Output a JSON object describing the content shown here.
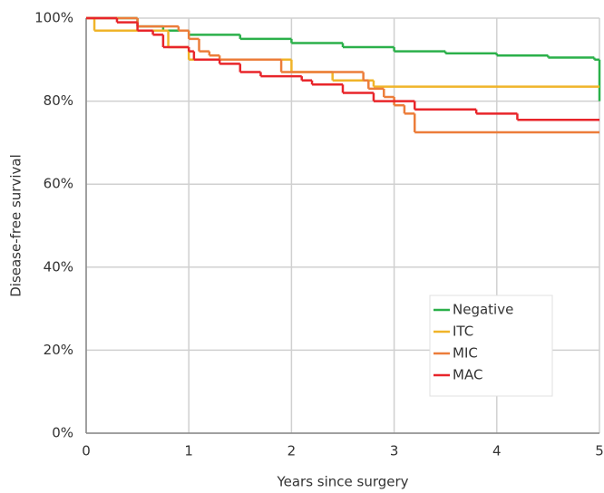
{
  "chart_data": {
    "type": "step",
    "x_label": "Years since surgery",
    "y_label": "Disease-free survival",
    "xlim": [
      0,
      5
    ],
    "xticks": [
      0,
      1,
      2,
      3,
      4,
      5
    ],
    "ylim": [
      0,
      100
    ],
    "yticks": [
      {
        "value": 0,
        "label": "0%"
      },
      {
        "value": 20,
        "label": "20%"
      },
      {
        "value": 40,
        "label": "40%"
      },
      {
        "value": 60,
        "label": "60%"
      },
      {
        "value": 80,
        "label": "80%"
      },
      {
        "value": 100,
        "label": "100%"
      }
    ],
    "grid": true,
    "legend": "lower right",
    "series": [
      {
        "name": "Negative",
        "color": "#2bb04a",
        "x": [
          0,
          0.5,
          0.75,
          1.0,
          1.5,
          2.0,
          2.5,
          3.0,
          3.5,
          4.0,
          4.5,
          4.95,
          5.0
        ],
        "values": [
          100,
          98,
          97,
          96,
          95,
          94,
          93,
          92,
          91.5,
          91,
          90.5,
          90,
          80
        ]
      },
      {
        "name": "ITC",
        "color": "#f0b429",
        "x": [
          0,
          0.08,
          0.8,
          1.0,
          2.0,
          2.4,
          2.8,
          5.0
        ],
        "values": [
          100,
          97,
          93,
          90,
          87,
          85,
          83.5,
          83.5
        ]
      },
      {
        "name": "MIC",
        "color": "#ec7d3a",
        "x": [
          0,
          0.5,
          0.9,
          1.0,
          1.1,
          1.2,
          1.3,
          1.9,
          2.7,
          2.75,
          2.9,
          3.0,
          3.1,
          3.2,
          5.0
        ],
        "values": [
          100,
          98,
          97,
          95,
          92,
          91,
          90,
          87,
          85,
          83,
          81,
          79,
          77,
          72.5,
          72.5
        ]
      },
      {
        "name": "MAC",
        "color": "#e8252a",
        "x": [
          0,
          0.3,
          0.5,
          0.65,
          0.75,
          1.0,
          1.05,
          1.3,
          1.5,
          1.7,
          2.1,
          2.2,
          2.5,
          2.8,
          3.2,
          3.8,
          4.2,
          5.0
        ],
        "values": [
          100,
          99,
          97,
          96,
          93,
          92,
          90,
          89,
          87,
          86,
          85,
          84,
          82,
          80,
          78,
          77,
          75.5,
          75.5
        ]
      }
    ]
  }
}
